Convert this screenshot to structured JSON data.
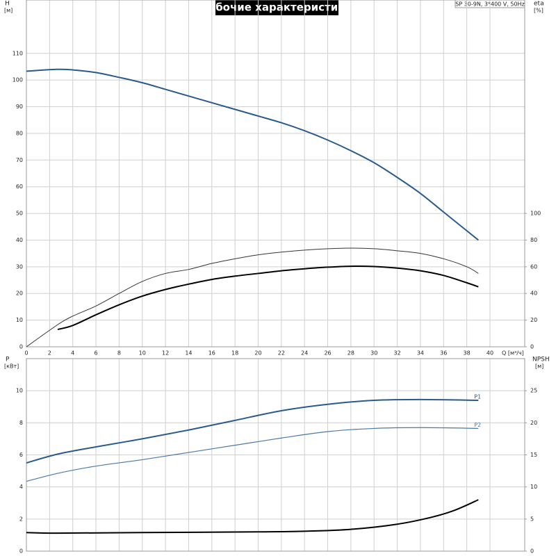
{
  "chart_data": [
    {
      "type": "line",
      "title": "Рабочие характеристики",
      "subtitle": "SP 30-9N, 3*400 V, 50Hz",
      "xlabel": "Q [м³/ч]",
      "ylabel": "H",
      "yunit": "[м]",
      "y2label": "eta",
      "y2unit": "[%]",
      "xlim": [
        0,
        43
      ],
      "xticks": [
        0,
        2,
        4,
        6,
        8,
        10,
        12,
        14,
        16,
        18,
        20,
        22,
        24,
        26,
        28,
        30,
        32,
        34,
        36,
        38,
        40
      ],
      "ylim": [
        0,
        130
      ],
      "yticks": [
        0,
        10,
        20,
        30,
        40,
        50,
        60,
        70,
        80,
        90,
        100,
        110
      ],
      "y2lim": [
        0,
        260
      ],
      "y2ticks": [
        0,
        20,
        40,
        60,
        80,
        100
      ],
      "grid": true,
      "series": [
        {
          "color": "#2a5a8c",
          "line_width": 2,
          "x": [
            0,
            2.6,
            4,
            6,
            8,
            10,
            12,
            14,
            16,
            18,
            20,
            22,
            24,
            26,
            28,
            30,
            32,
            34,
            36,
            38,
            39
          ],
          "values": [
            103.3,
            104,
            103.8,
            102.8,
            101,
            99,
            96.5,
            94,
            91.5,
            89,
            86.5,
            84,
            81,
            77.5,
            73.5,
            69,
            63.5,
            57.5,
            50.5,
            43.5,
            40
          ]
        },
        {
          "color": "#333333",
          "line_width": 1,
          "axis": "y2",
          "x": [
            0,
            2.7,
            4,
            6,
            8,
            10,
            12,
            14,
            16,
            18,
            20,
            22,
            24,
            26,
            28,
            30,
            32,
            34,
            36,
            38,
            39
          ],
          "values": [
            0,
            16.6,
            23,
            30.6,
            40,
            49,
            55,
            58,
            62.5,
            66,
            69,
            71,
            72.5,
            73.5,
            74,
            73.5,
            72,
            70,
            66,
            60,
            55
          ]
        },
        {
          "color": "#000000",
          "line_width": 2,
          "axis": "y2",
          "x": [
            2.7,
            4,
            6,
            8,
            10,
            12,
            14,
            16,
            18,
            20,
            22,
            24,
            26,
            28,
            30,
            32,
            34,
            36,
            38,
            39
          ],
          "values": [
            13,
            16,
            24,
            31.5,
            38,
            43,
            47,
            50.5,
            53,
            55,
            57,
            58.5,
            59.7,
            60.4,
            60.2,
            59,
            57,
            53.5,
            48,
            45
          ]
        }
      ]
    },
    {
      "type": "line",
      "ylabel": "P",
      "yunit": "[кВт]",
      "y2label": "NPSH",
      "y2unit": "[м]",
      "xlim": [
        0,
        43
      ],
      "ylim": [
        0,
        12
      ],
      "yticks": [
        0,
        2,
        4,
        6,
        8,
        10
      ],
      "y2lim": [
        0,
        30
      ],
      "y2ticks": [
        0,
        5,
        10,
        15,
        20,
        25
      ],
      "grid": true,
      "series": [
        {
          "name": "P1",
          "color": "#2a5a8c",
          "line_width": 2,
          "x": [
            0,
            2.7,
            6,
            10,
            14,
            18,
            22,
            26,
            30,
            34,
            39
          ],
          "values": [
            5.5,
            6.05,
            6.5,
            7.0,
            7.55,
            8.15,
            8.75,
            9.15,
            9.4,
            9.45,
            9.4
          ]
        },
        {
          "name": "P2",
          "color": "#4a78a8",
          "line_width": 1.2,
          "x": [
            0,
            2.7,
            6,
            10,
            14,
            18,
            22,
            26,
            30,
            34,
            39
          ],
          "values": [
            4.35,
            4.85,
            5.3,
            5.7,
            6.15,
            6.6,
            7.05,
            7.45,
            7.65,
            7.7,
            7.65
          ]
        },
        {
          "color": "#000000",
          "line_width": 2,
          "axis": "y2",
          "x": [
            0,
            2.7,
            10,
            20,
            24,
            28,
            32,
            35,
            37,
            39
          ],
          "values": [
            2.9,
            2.8,
            2.9,
            3.0,
            3.1,
            3.4,
            4.2,
            5.3,
            6.4,
            8.0
          ]
        }
      ]
    }
  ]
}
